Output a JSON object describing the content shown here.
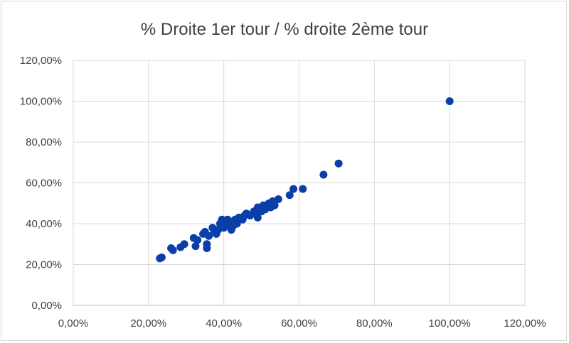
{
  "chart_data": {
    "type": "scatter",
    "title": "% Droite 1er tour / % droite 2ème tour",
    "xlabel": "",
    "ylabel": "",
    "xlim": [
      0,
      1.2
    ],
    "ylim": [
      0,
      1.2
    ],
    "x_ticks": [
      0,
      0.2,
      0.4,
      0.6,
      0.8,
      1.0,
      1.2
    ],
    "y_ticks": [
      0,
      0.2,
      0.4,
      0.6,
      0.8,
      1.0,
      1.2
    ],
    "x_tick_labels": [
      "0,00%",
      "20,00%",
      "40,00%",
      "60,00%",
      "80,00%",
      "100,00%",
      "120,00%"
    ],
    "y_tick_labels": [
      "0,00%",
      "20,00%",
      "40,00%",
      "60,00%",
      "80,00%",
      "100,00%",
      "120,00%"
    ],
    "grid": true,
    "legend": "none",
    "marker_color": "#0a3fa8",
    "points": [
      [
        0.23,
        0.23
      ],
      [
        0.235,
        0.235
      ],
      [
        0.26,
        0.28
      ],
      [
        0.265,
        0.27
      ],
      [
        0.285,
        0.285
      ],
      [
        0.295,
        0.3
      ],
      [
        0.32,
        0.33
      ],
      [
        0.325,
        0.29
      ],
      [
        0.33,
        0.32
      ],
      [
        0.345,
        0.35
      ],
      [
        0.35,
        0.36
      ],
      [
        0.355,
        0.28
      ],
      [
        0.355,
        0.3
      ],
      [
        0.36,
        0.34
      ],
      [
        0.37,
        0.38
      ],
      [
        0.375,
        0.36
      ],
      [
        0.38,
        0.35
      ],
      [
        0.385,
        0.37
      ],
      [
        0.39,
        0.4
      ],
      [
        0.395,
        0.42
      ],
      [
        0.4,
        0.38
      ],
      [
        0.4,
        0.41
      ],
      [
        0.405,
        0.39
      ],
      [
        0.41,
        0.42
      ],
      [
        0.415,
        0.4
      ],
      [
        0.42,
        0.37
      ],
      [
        0.42,
        0.41
      ],
      [
        0.425,
        0.39
      ],
      [
        0.43,
        0.42
      ],
      [
        0.435,
        0.4
      ],
      [
        0.44,
        0.43
      ],
      [
        0.45,
        0.42
      ],
      [
        0.455,
        0.44
      ],
      [
        0.46,
        0.45
      ],
      [
        0.47,
        0.44
      ],
      [
        0.48,
        0.46
      ],
      [
        0.485,
        0.45
      ],
      [
        0.49,
        0.43
      ],
      [
        0.49,
        0.48
      ],
      [
        0.495,
        0.47
      ],
      [
        0.5,
        0.46
      ],
      [
        0.505,
        0.49
      ],
      [
        0.51,
        0.47
      ],
      [
        0.52,
        0.5
      ],
      [
        0.525,
        0.48
      ],
      [
        0.53,
        0.51
      ],
      [
        0.535,
        0.49
      ],
      [
        0.545,
        0.52
      ],
      [
        0.575,
        0.54
      ],
      [
        0.585,
        0.57
      ],
      [
        0.61,
        0.57
      ],
      [
        0.665,
        0.64
      ],
      [
        0.705,
        0.695
      ],
      [
        1.0,
        1.0
      ]
    ]
  }
}
